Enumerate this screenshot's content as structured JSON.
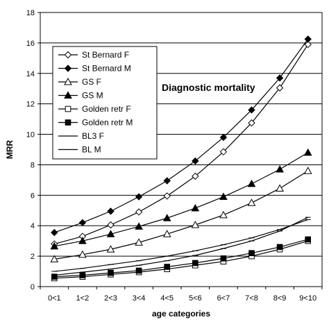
{
  "chart_data": {
    "type": "line",
    "title": "",
    "annotation": "Diagnostic mortality",
    "xlabel": "age categories",
    "ylabel": "MRR",
    "ylim": [
      0,
      18
    ],
    "yticks": [
      "0",
      "2",
      "4",
      "6",
      "8",
      "10",
      "12",
      "14",
      "16",
      "18"
    ],
    "categories": [
      "0<1",
      "1<2",
      "2<3",
      "3<4",
      "4<5",
      "5<6",
      "6<7",
      "7<8",
      "8<9",
      "9<10"
    ],
    "grid": "horizontal",
    "legend_position": "top-left",
    "series": [
      {
        "name": "St Bernard F",
        "marker": "diamond-open",
        "color": "#000000",
        "values": [
          2.8,
          3.3,
          4.05,
          4.9,
          5.95,
          7.25,
          8.85,
          10.75,
          13.05,
          15.9
        ]
      },
      {
        "name": "St Bernard M",
        "marker": "diamond-filled",
        "color": "#000000",
        "values": [
          3.55,
          4.2,
          4.95,
          5.9,
          6.95,
          8.25,
          9.8,
          11.6,
          13.7,
          16.25
        ]
      },
      {
        "name": "GS F",
        "marker": "triangle-open",
        "color": "#000000",
        "values": [
          1.8,
          2.1,
          2.45,
          2.9,
          3.45,
          4.05,
          4.7,
          5.5,
          6.45,
          7.6
        ]
      },
      {
        "name": "GS M",
        "marker": "triangle-filled",
        "color": "#000000",
        "values": [
          2.65,
          3.0,
          3.45,
          3.95,
          4.5,
          5.15,
          5.9,
          6.75,
          7.7,
          8.8
        ]
      },
      {
        "name": "Golden retr F",
        "marker": "square-open",
        "color": "#000000",
        "values": [
          0.55,
          0.65,
          0.8,
          0.95,
          1.15,
          1.4,
          1.65,
          2.0,
          2.45,
          3.0
        ]
      },
      {
        "name": "Golden retr M",
        "marker": "square-filled",
        "color": "#000000",
        "values": [
          0.65,
          0.75,
          0.9,
          1.05,
          1.3,
          1.55,
          1.85,
          2.2,
          2.6,
          3.1
        ]
      },
      {
        "name": "BL3 F",
        "marker": "dash",
        "color": "#000000",
        "values": [
          1.0,
          1.2,
          1.45,
          1.7,
          2.0,
          2.35,
          2.75,
          3.2,
          3.75,
          4.4
        ]
      },
      {
        "name": "BL M",
        "marker": "dash",
        "color": "#000000",
        "values": [
          0.75,
          0.95,
          1.15,
          1.4,
          1.7,
          2.05,
          2.5,
          3.0,
          3.65,
          4.55
        ]
      }
    ]
  }
}
